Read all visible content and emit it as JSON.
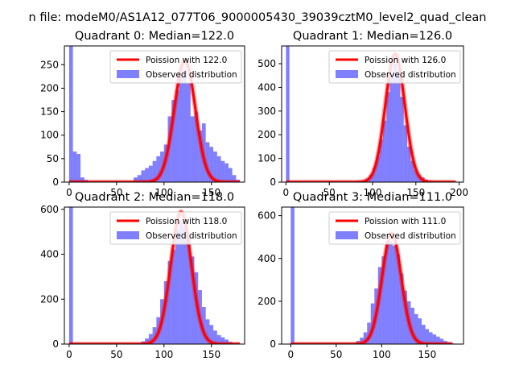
{
  "figure": {
    "suptitle": "n file: modeM0/AS1A12_077T06_9000005430_39039cztM0_level2_quad_clean"
  },
  "colors": {
    "hist": "#0000ff",
    "fit": "#ff0000",
    "axis": "#000000",
    "legend_border": "#cccccc"
  },
  "chart_data": [
    {
      "type": "bar",
      "title": "Quadrant 0: Median=122.0",
      "xlim": [
        -5,
        185
      ],
      "ylim": [
        0,
        290
      ],
      "xticks": [
        0,
        50,
        100,
        150
      ],
      "yticks": [
        0,
        50,
        100,
        150,
        200,
        250
      ],
      "legend": [
        "Poission with 122.0",
        "Observed distribution"
      ],
      "legend_position": "top-right",
      "bin_width": 4,
      "bins": [
        [
          0,
          290
        ],
        [
          4,
          65
        ],
        [
          8,
          60
        ],
        [
          12,
          10
        ],
        [
          16,
          5
        ],
        [
          20,
          1
        ],
        [
          24,
          1
        ],
        [
          28,
          1
        ],
        [
          32,
          1
        ],
        [
          36,
          1
        ],
        [
          40,
          1
        ],
        [
          44,
          1
        ],
        [
          48,
          1
        ],
        [
          52,
          1
        ],
        [
          56,
          1
        ],
        [
          60,
          1
        ],
        [
          64,
          1
        ],
        [
          68,
          10
        ],
        [
          72,
          15
        ],
        [
          76,
          25
        ],
        [
          80,
          30
        ],
        [
          84,
          35
        ],
        [
          88,
          45
        ],
        [
          92,
          55
        ],
        [
          96,
          65
        ],
        [
          100,
          80
        ],
        [
          104,
          140
        ],
        [
          108,
          175
        ],
        [
          112,
          195
        ],
        [
          116,
          230
        ],
        [
          120,
          240
        ],
        [
          124,
          210
        ],
        [
          128,
          140
        ],
        [
          132,
          150
        ],
        [
          136,
          110
        ],
        [
          140,
          125
        ],
        [
          144,
          85
        ],
        [
          148,
          75
        ],
        [
          152,
          65
        ],
        [
          156,
          55
        ],
        [
          160,
          45
        ],
        [
          164,
          40
        ],
        [
          168,
          30
        ],
        [
          172,
          15
        ],
        [
          176,
          5
        ]
      ],
      "fit": {
        "mean": 122.0,
        "x_range": [
          0,
          180
        ]
      }
    },
    {
      "type": "bar",
      "title": "Quadrant 1: Median=126.0",
      "xlim": [
        -5,
        205
      ],
      "ylim": [
        0,
        575
      ],
      "xticks": [
        0,
        50,
        100,
        150,
        200
      ],
      "yticks": [
        0,
        100,
        200,
        300,
        400,
        500
      ],
      "legend": [
        "Poission with 126.0",
        "Observed distribution"
      ],
      "legend_position": "top-right",
      "bin_width": 4,
      "bins": [
        [
          0,
          575
        ],
        [
          4,
          1
        ],
        [
          8,
          1
        ],
        [
          12,
          1
        ],
        [
          16,
          1
        ],
        [
          20,
          1
        ],
        [
          24,
          1
        ],
        [
          28,
          1
        ],
        [
          32,
          1
        ],
        [
          36,
          1
        ],
        [
          40,
          1
        ],
        [
          44,
          1
        ],
        [
          48,
          1
        ],
        [
          52,
          1
        ],
        [
          56,
          1
        ],
        [
          60,
          1
        ],
        [
          64,
          1
        ],
        [
          68,
          1
        ],
        [
          72,
          1
        ],
        [
          76,
          1
        ],
        [
          80,
          1
        ],
        [
          84,
          4
        ],
        [
          88,
          8
        ],
        [
          92,
          15
        ],
        [
          96,
          30
        ],
        [
          100,
          60
        ],
        [
          104,
          110
        ],
        [
          108,
          180
        ],
        [
          112,
          260
        ],
        [
          116,
          380
        ],
        [
          120,
          440
        ],
        [
          124,
          500
        ],
        [
          128,
          470
        ],
        [
          132,
          360
        ],
        [
          136,
          240
        ],
        [
          140,
          150
        ],
        [
          144,
          90
        ],
        [
          148,
          50
        ],
        [
          152,
          30
        ],
        [
          156,
          20
        ],
        [
          160,
          10
        ],
        [
          164,
          5
        ],
        [
          168,
          3
        ],
        [
          172,
          2
        ],
        [
          176,
          1
        ],
        [
          180,
          1
        ],
        [
          184,
          1
        ],
        [
          188,
          1
        ],
        [
          192,
          1
        ]
      ],
      "fit": {
        "mean": 126.0,
        "x_range": [
          0,
          196
        ]
      }
    },
    {
      "type": "bar",
      "title": "Quadrant 2: Median=118.0",
      "xlim": [
        -5,
        185
      ],
      "ylim": [
        0,
        610
      ],
      "xticks": [
        0,
        50,
        100,
        150
      ],
      "yticks": [
        0,
        200,
        400,
        600
      ],
      "legend": [
        "Poission with 118.0",
        "Observed distribution"
      ],
      "legend_position": "top-right",
      "bin_width": 4,
      "bins": [
        [
          0,
          610
        ],
        [
          4,
          1
        ],
        [
          8,
          1
        ],
        [
          12,
          1
        ],
        [
          16,
          1
        ],
        [
          20,
          1
        ],
        [
          24,
          1
        ],
        [
          28,
          1
        ],
        [
          32,
          1
        ],
        [
          36,
          1
        ],
        [
          40,
          1
        ],
        [
          44,
          1
        ],
        [
          48,
          1
        ],
        [
          52,
          1
        ],
        [
          56,
          1
        ],
        [
          60,
          1
        ],
        [
          64,
          1
        ],
        [
          68,
          1
        ],
        [
          72,
          5
        ],
        [
          76,
          12
        ],
        [
          80,
          25
        ],
        [
          84,
          45
        ],
        [
          88,
          75
        ],
        [
          92,
          120
        ],
        [
          96,
          200
        ],
        [
          100,
          280
        ],
        [
          104,
          370
        ],
        [
          108,
          420
        ],
        [
          112,
          510
        ],
        [
          116,
          545
        ],
        [
          120,
          520
        ],
        [
          124,
          480
        ],
        [
          128,
          390
        ],
        [
          132,
          320
        ],
        [
          136,
          240
        ],
        [
          140,
          165
        ],
        [
          144,
          110
        ],
        [
          148,
          85
        ],
        [
          152,
          60
        ],
        [
          156,
          40
        ],
        [
          160,
          30
        ],
        [
          164,
          20
        ],
        [
          168,
          10
        ],
        [
          172,
          5
        ],
        [
          176,
          2
        ]
      ],
      "fit": {
        "mean": 118.0,
        "x_range": [
          0,
          180
        ]
      }
    },
    {
      "type": "bar",
      "title": "Quadrant 3: Median=111.0",
      "xlim": [
        -10,
        190
      ],
      "ylim": [
        0,
        640
      ],
      "xticks": [
        0,
        50,
        100,
        150
      ],
      "yticks": [
        0,
        200,
        400,
        600
      ],
      "legend": [
        "Poission with 111.0",
        "Observed distribution"
      ],
      "legend_position": "top-right",
      "bin_width": 4,
      "bins": [
        [
          0,
          640
        ],
        [
          4,
          1
        ],
        [
          8,
          1
        ],
        [
          12,
          1
        ],
        [
          16,
          1
        ],
        [
          20,
          1
        ],
        [
          24,
          1
        ],
        [
          28,
          1
        ],
        [
          32,
          1
        ],
        [
          36,
          1
        ],
        [
          40,
          1
        ],
        [
          44,
          1
        ],
        [
          48,
          1
        ],
        [
          52,
          1
        ],
        [
          56,
          1
        ],
        [
          60,
          1
        ],
        [
          64,
          2
        ],
        [
          68,
          5
        ],
        [
          72,
          15
        ],
        [
          76,
          30
        ],
        [
          80,
          55
        ],
        [
          84,
          100
        ],
        [
          88,
          190
        ],
        [
          92,
          260
        ],
        [
          96,
          360
        ],
        [
          100,
          410
        ],
        [
          104,
          470
        ],
        [
          108,
          480
        ],
        [
          112,
          460
        ],
        [
          116,
          420
        ],
        [
          120,
          330
        ],
        [
          124,
          250
        ],
        [
          128,
          200
        ],
        [
          132,
          170
        ],
        [
          136,
          140
        ],
        [
          140,
          120
        ],
        [
          144,
          90
        ],
        [
          148,
          70
        ],
        [
          152,
          55
        ],
        [
          156,
          45
        ],
        [
          160,
          35
        ],
        [
          164,
          25
        ],
        [
          168,
          15
        ],
        [
          172,
          8
        ],
        [
          176,
          3
        ]
      ],
      "fit": {
        "mean": 111.0,
        "x_range": [
          0,
          178
        ]
      }
    }
  ]
}
